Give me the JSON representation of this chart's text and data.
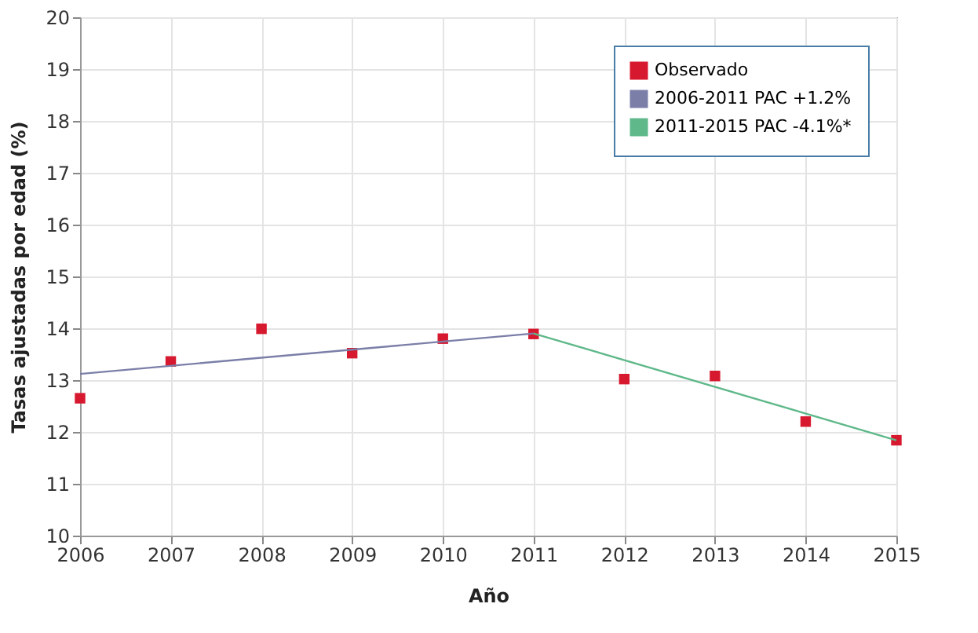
{
  "chart_data": {
    "type": "scatter",
    "xlabel": "Año",
    "ylabel": "Tasas ajustadas por edad (%)",
    "xlim": [
      2006,
      2015
    ],
    "xticks": [
      2006,
      2007,
      2008,
      2009,
      2010,
      2011,
      2012,
      2013,
      2014,
      2015
    ],
    "ylim": [
      10,
      20
    ],
    "yticks": [
      10,
      11,
      12,
      13,
      14,
      15,
      16,
      17,
      18,
      19,
      20
    ],
    "grid": true,
    "legend": "top right",
    "x": [
      2006,
      2007,
      2008,
      2009,
      2010,
      2011,
      2012,
      2013,
      2014,
      2015
    ],
    "series": [
      {
        "name": "Observado",
        "marker": "square",
        "color": "#d7192f",
        "values": [
          12.65,
          13.36,
          13.99,
          13.52,
          13.8,
          13.89,
          13.02,
          13.08,
          12.2,
          11.84
        ]
      },
      {
        "name": "2006-2011 PAC +1.2%",
        "type": "line",
        "marker": "none",
        "color": "#7b7fa8",
        "x": [
          2006,
          2011
        ],
        "values": [
          13.12,
          13.9
        ]
      },
      {
        "name": "2011-2015 PAC -4.1%*",
        "type": "line",
        "marker": "none",
        "color": "#5fb88a",
        "x": [
          2011,
          2015
        ],
        "values": [
          13.9,
          11.84
        ]
      }
    ]
  }
}
